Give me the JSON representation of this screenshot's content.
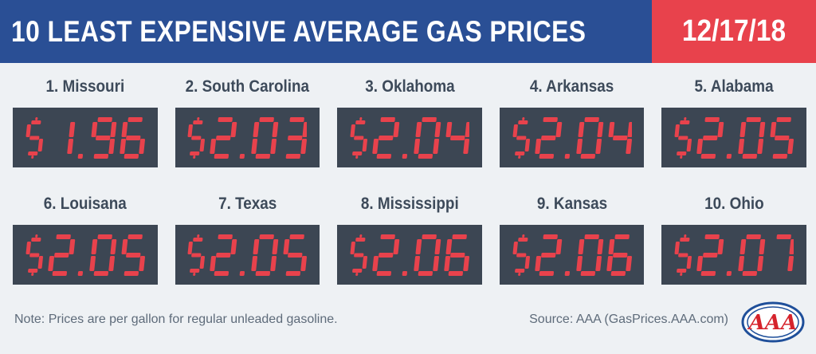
{
  "header": {
    "title": "10 LEAST EXPENSIVE AVERAGE GAS PRICES",
    "date": "12/17/18"
  },
  "prices": [
    {
      "rank_label": "1. Missouri",
      "price": "$1.96"
    },
    {
      "rank_label": "2. South Carolina",
      "price": "$2.03"
    },
    {
      "rank_label": "3. Oklahoma",
      "price": "$2.04"
    },
    {
      "rank_label": "4. Arkansas",
      "price": "$2.04"
    },
    {
      "rank_label": "5. Alabama",
      "price": "$2.05"
    },
    {
      "rank_label": "6. Louisana",
      "price": "$2.05"
    },
    {
      "rank_label": "7. Texas",
      "price": "$2.05"
    },
    {
      "rank_label": "8. Mississippi",
      "price": "$2.06"
    },
    {
      "rank_label": "9. Kansas",
      "price": "$2.06"
    },
    {
      "rank_label": "10. Ohio",
      "price": "$2.07"
    }
  ],
  "footer": {
    "note": "Note: Prices are per gallon for regular unleaded gasoline.",
    "source": "Source: AAA (GasPrices.AAA.com)"
  },
  "logo": {
    "text": "AAA"
  },
  "colors": {
    "header_blue": "#2a4f95",
    "header_red": "#e8424c",
    "background": "#eef1f4",
    "display_bg": "#3c4653",
    "digit_red": "#e8424c"
  }
}
